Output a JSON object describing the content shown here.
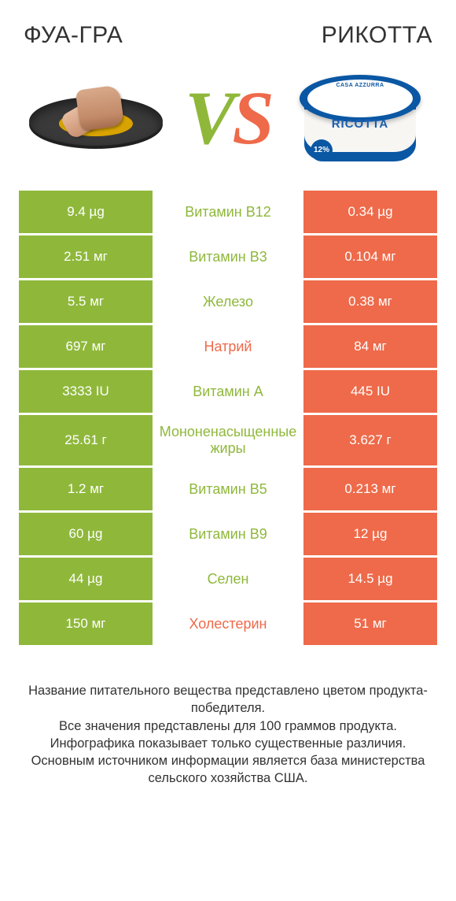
{
  "colors": {
    "green": "#8fb83b",
    "orange": "#ee6a4a",
    "text": "#333333",
    "white": "#ffffff",
    "ricotta_blue": "#0a57a4",
    "ricotta_label": "#1a5fb0"
  },
  "header": {
    "left_title": "ФУА-ГРА",
    "right_title": "РИКОТТА",
    "vs_v": "V",
    "vs_s": "S",
    "ricotta_brand": "RICOTTA",
    "ricotta_arc": "CASA AZZURRA",
    "ricotta_badge": "12%"
  },
  "rows": [
    {
      "label": "Витамин B12",
      "left": "9.4 µg",
      "right": "0.34 µg",
      "winner": "left",
      "tall": false
    },
    {
      "label": "Витамин B3",
      "left": "2.51 мг",
      "right": "0.104 мг",
      "winner": "left",
      "tall": false
    },
    {
      "label": "Железо",
      "left": "5.5 мг",
      "right": "0.38 мг",
      "winner": "left",
      "tall": false
    },
    {
      "label": "Натрий",
      "left": "697 мг",
      "right": "84 мг",
      "winner": "right",
      "tall": false
    },
    {
      "label": "Витамин A",
      "left": "3333 IU",
      "right": "445 IU",
      "winner": "left",
      "tall": false
    },
    {
      "label": "Мононенасыщенные жиры",
      "left": "25.61 г",
      "right": "3.627 г",
      "winner": "left",
      "tall": true
    },
    {
      "label": "Витамин B5",
      "left": "1.2 мг",
      "right": "0.213 мг",
      "winner": "left",
      "tall": false
    },
    {
      "label": "Витамин B9",
      "left": "60 µg",
      "right": "12 µg",
      "winner": "left",
      "tall": false
    },
    {
      "label": "Селен",
      "left": "44 µg",
      "right": "14.5 µg",
      "winner": "left",
      "tall": false
    },
    {
      "label": "Холестерин",
      "left": "150 мг",
      "right": "51 мг",
      "winner": "right",
      "tall": false
    }
  ],
  "footer": {
    "line1": "Название питательного вещества представлено цветом продукта-победителя.",
    "line2": "Все значения представлены для 100 граммов продукта.",
    "line3": "Инфографика показывает только существенные различия.",
    "line4": "Основным источником информации является база министерства сельского хозяйства США."
  }
}
